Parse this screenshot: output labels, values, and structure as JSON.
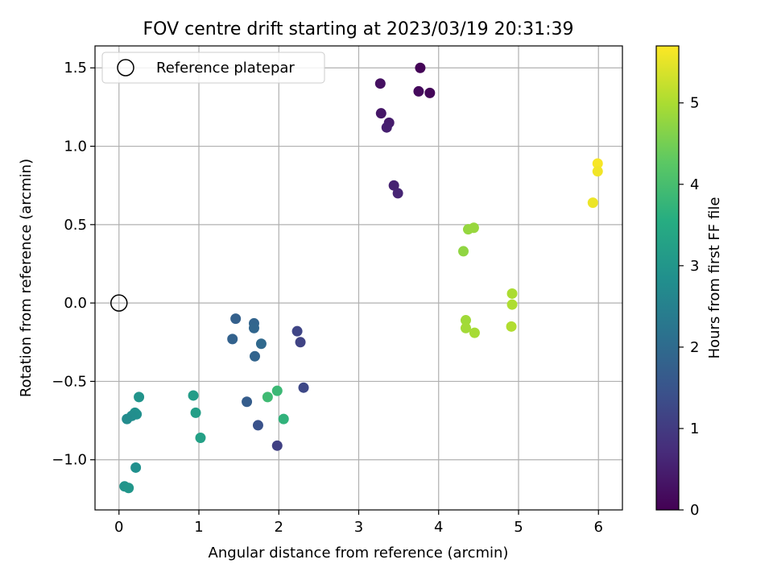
{
  "chart_data": {
    "type": "scatter",
    "title": "FOV centre drift starting at 2023/03/19 20:31:39",
    "xlabel": "Angular distance from reference (arcmin)",
    "ylabel": "Rotation from reference (arcmin)",
    "xlim": [
      -0.3,
      6.3
    ],
    "ylim": [
      -1.32,
      1.64
    ],
    "xticks": [
      0,
      1,
      2,
      3,
      4,
      5,
      6
    ],
    "xtick_labels": [
      "0",
      "1",
      "2",
      "3",
      "4",
      "5",
      "6"
    ],
    "yticks": [
      -1.0,
      -0.5,
      0.0,
      0.5,
      1.0,
      1.5
    ],
    "ytick_labels": [
      "−1.0",
      "−0.5",
      "0.0",
      "0.5",
      "1.0",
      "1.5"
    ],
    "grid": true,
    "legend": {
      "position": "upper-left",
      "entries": [
        {
          "label": "Reference platepar",
          "marker": "open-circle"
        }
      ]
    },
    "reference_point": {
      "x": 0.0,
      "y": 0.0
    },
    "colorbar": {
      "label": "Hours from first FF file",
      "colormap": "viridis",
      "range": [
        0,
        5.7
      ],
      "ticks": [
        0,
        1,
        2,
        3,
        4,
        5
      ],
      "tick_labels": [
        "0",
        "1",
        "2",
        "3",
        "4",
        "5"
      ]
    },
    "points": [
      {
        "x": 3.77,
        "y": 1.5,
        "c": 0.05
      },
      {
        "x": 3.89,
        "y": 1.34,
        "c": 0.1
      },
      {
        "x": 3.75,
        "y": 1.35,
        "c": 0.15
      },
      {
        "x": 3.27,
        "y": 1.4,
        "c": 0.25
      },
      {
        "x": 3.28,
        "y": 1.21,
        "c": 0.35
      },
      {
        "x": 3.38,
        "y": 1.15,
        "c": 0.45
      },
      {
        "x": 3.35,
        "y": 1.12,
        "c": 0.5
      },
      {
        "x": 3.44,
        "y": 0.75,
        "c": 0.55
      },
      {
        "x": 3.49,
        "y": 0.7,
        "c": 0.6
      },
      {
        "x": 1.46,
        "y": -0.1,
        "c": 1.75
      },
      {
        "x": 1.42,
        "y": -0.23,
        "c": 1.8
      },
      {
        "x": 1.69,
        "y": -0.13,
        "c": 1.85
      },
      {
        "x": 1.69,
        "y": -0.16,
        "c": 1.9
      },
      {
        "x": 1.78,
        "y": -0.26,
        "c": 1.95
      },
      {
        "x": 1.7,
        "y": -0.34,
        "c": 1.85
      },
      {
        "x": 2.23,
        "y": -0.18,
        "c": 1.2
      },
      {
        "x": 2.27,
        "y": -0.25,
        "c": 1.15
      },
      {
        "x": 2.31,
        "y": -0.54,
        "c": 1.25
      },
      {
        "x": 1.6,
        "y": -0.63,
        "c": 1.7
      },
      {
        "x": 1.74,
        "y": -0.78,
        "c": 1.45
      },
      {
        "x": 1.98,
        "y": -0.91,
        "c": 1.1
      },
      {
        "x": 0.25,
        "y": -0.6,
        "c": 2.95
      },
      {
        "x": 0.2,
        "y": -0.7,
        "c": 2.9
      },
      {
        "x": 0.22,
        "y": -0.71,
        "c": 2.85
      },
      {
        "x": 0.16,
        "y": -0.72,
        "c": 2.8
      },
      {
        "x": 0.1,
        "y": -0.74,
        "c": 2.75
      },
      {
        "x": 0.21,
        "y": -1.05,
        "c": 2.85
      },
      {
        "x": 0.07,
        "y": -1.17,
        "c": 2.95
      },
      {
        "x": 0.12,
        "y": -1.18,
        "c": 3.0
      },
      {
        "x": 0.93,
        "y": -0.59,
        "c": 3.15
      },
      {
        "x": 0.96,
        "y": -0.7,
        "c": 3.2
      },
      {
        "x": 1.02,
        "y": -0.86,
        "c": 3.25
      },
      {
        "x": 1.86,
        "y": -0.6,
        "c": 3.9
      },
      {
        "x": 1.98,
        "y": -0.56,
        "c": 3.85
      },
      {
        "x": 2.06,
        "y": -0.74,
        "c": 3.7
      },
      {
        "x": 4.31,
        "y": 0.33,
        "c": 4.75
      },
      {
        "x": 4.37,
        "y": 0.47,
        "c": 4.8
      },
      {
        "x": 4.44,
        "y": 0.48,
        "c": 4.82
      },
      {
        "x": 4.34,
        "y": -0.11,
        "c": 4.9
      },
      {
        "x": 4.34,
        "y": -0.16,
        "c": 4.92
      },
      {
        "x": 4.45,
        "y": -0.19,
        "c": 4.95
      },
      {
        "x": 4.92,
        "y": 0.06,
        "c": 5.0
      },
      {
        "x": 4.92,
        "y": -0.01,
        "c": 5.02
      },
      {
        "x": 4.91,
        "y": -0.15,
        "c": 5.05
      },
      {
        "x": 5.99,
        "y": 0.89,
        "c": 5.65
      },
      {
        "x": 5.99,
        "y": 0.84,
        "c": 5.6
      },
      {
        "x": 5.93,
        "y": 0.64,
        "c": 5.55
      }
    ]
  }
}
